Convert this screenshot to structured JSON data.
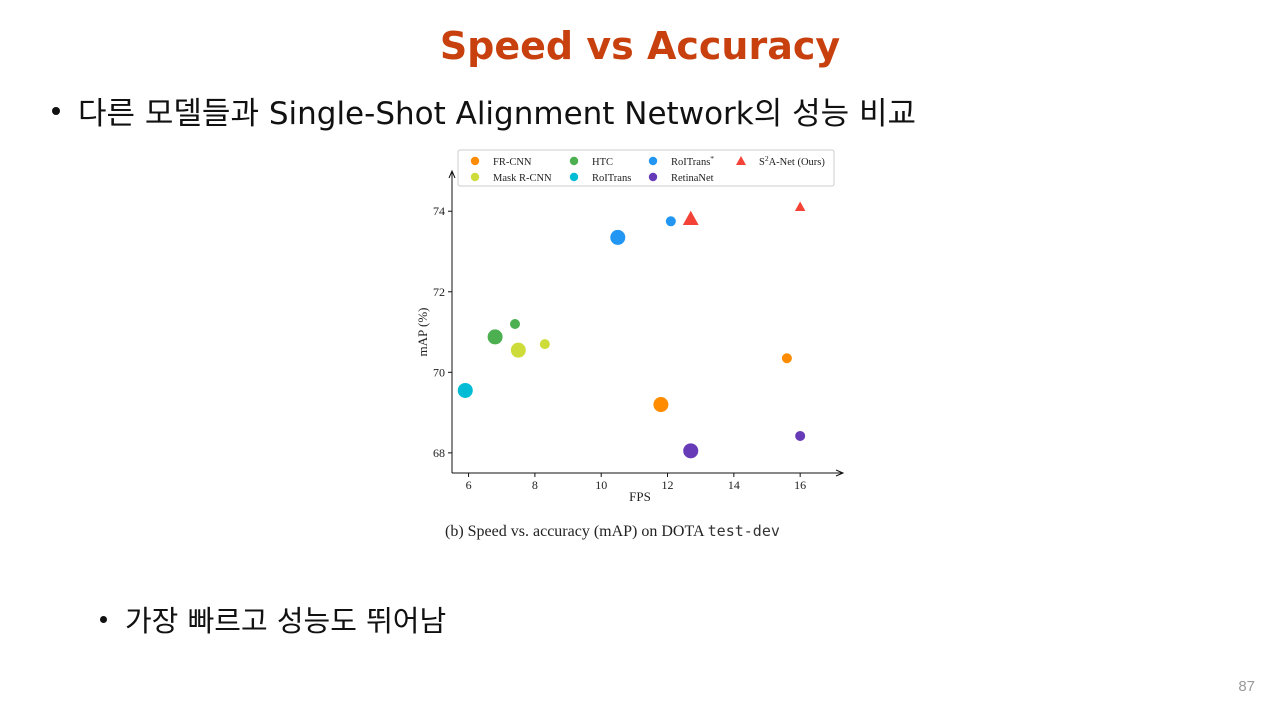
{
  "slide": {
    "title": "Speed vs Accuracy",
    "bullet_main": "다른 모델들과 Single-Shot Alignment Network의 성능 비교",
    "bullet_sub": "가장 빠르고 성능도 뛰어남",
    "page_number": "87"
  },
  "caption": {
    "text": "(b) Speed vs. accuracy (mAP) on DOTA ",
    "code": "test-dev"
  },
  "chart_data": {
    "type": "scatter",
    "xlabel": "FPS",
    "ylabel": "mAP (%)",
    "xlim": [
      5.5,
      16.9
    ],
    "ylim": [
      67.5,
      74.9
    ],
    "xticks": [
      6,
      8,
      10,
      12,
      14,
      16
    ],
    "yticks": [
      68,
      70,
      72,
      74
    ],
    "grid": false,
    "legend_position": "top",
    "series": [
      {
        "name": "FR-CNN",
        "color": "#ff8c00",
        "marker": "circle",
        "points": [
          {
            "x": 11.8,
            "y": 69.2,
            "size": "large"
          },
          {
            "x": 15.6,
            "y": 70.35,
            "size": "small"
          }
        ]
      },
      {
        "name": "Mask R-CNN",
        "color": "#cddc39",
        "marker": "circle",
        "points": [
          {
            "x": 7.5,
            "y": 70.55,
            "size": "large"
          },
          {
            "x": 8.3,
            "y": 70.7,
            "size": "small"
          }
        ]
      },
      {
        "name": "HTC",
        "color": "#4caf50",
        "marker": "circle",
        "points": [
          {
            "x": 6.8,
            "y": 70.88,
            "size": "large"
          },
          {
            "x": 7.4,
            "y": 71.2,
            "size": "small"
          }
        ]
      },
      {
        "name": "RoITrans",
        "color": "#00bcd4",
        "marker": "circle",
        "points": [
          {
            "x": 5.9,
            "y": 69.55,
            "size": "large"
          }
        ]
      },
      {
        "name": "RoITrans",
        "name_sup": "*",
        "color": "#2196f3",
        "marker": "circle",
        "points": [
          {
            "x": 10.5,
            "y": 73.35,
            "size": "large"
          },
          {
            "x": 12.1,
            "y": 73.75,
            "size": "small"
          }
        ]
      },
      {
        "name": "RetinaNet",
        "color": "#673ab7",
        "marker": "circle",
        "points": [
          {
            "x": 12.7,
            "y": 68.05,
            "size": "large"
          },
          {
            "x": 16.0,
            "y": 68.42,
            "size": "small"
          }
        ]
      },
      {
        "name": "A-Net (Ours)",
        "name_prefix": "S",
        "name_sup": "2",
        "color": "#f44336",
        "marker": "triangle",
        "points": [
          {
            "x": 12.7,
            "y": 73.8,
            "size": "large"
          },
          {
            "x": 16.0,
            "y": 74.1,
            "size": "small"
          }
        ]
      }
    ]
  }
}
